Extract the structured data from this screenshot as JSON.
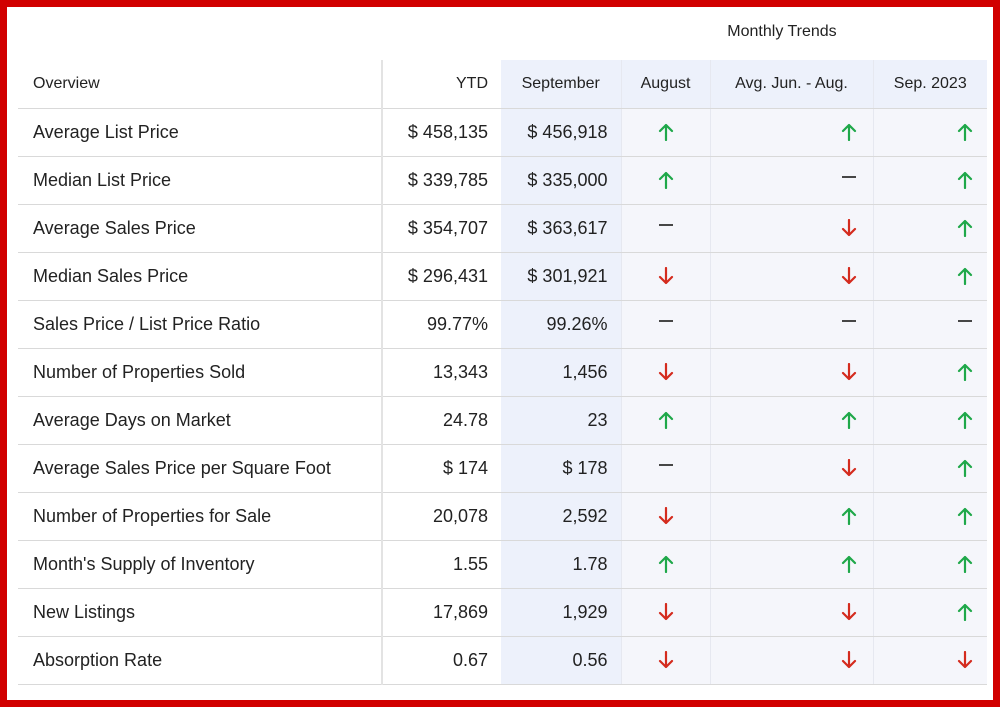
{
  "header": {
    "section_title": "Monthly Trends",
    "columns": {
      "overview": "Overview",
      "ytd": "YTD",
      "september": "September",
      "august": "August",
      "avg": "Avg. Jun. - Aug.",
      "sep2023": "Sep. 2023"
    }
  },
  "colors": {
    "border": "#d10000",
    "up": "#1fa84a",
    "down": "#d42b1e",
    "flat": "#333333",
    "highlight": "#edf1fb"
  },
  "rows": [
    {
      "label": "Average List Price",
      "ytd": "$ 458,135",
      "september": "$ 456,918",
      "august": "up",
      "avg": "up",
      "sep2023": "up"
    },
    {
      "label": "Median List Price",
      "ytd": "$ 339,785",
      "september": "$ 335,000",
      "august": "up",
      "avg": "flat",
      "sep2023": "up"
    },
    {
      "label": "Average Sales Price",
      "ytd": "$ 354,707",
      "september": "$ 363,617",
      "august": "flat",
      "avg": "down",
      "sep2023": "up"
    },
    {
      "label": "Median Sales Price",
      "ytd": "$ 296,431",
      "september": "$ 301,921",
      "august": "down",
      "avg": "down",
      "sep2023": "up"
    },
    {
      "label": "Sales Price / List Price Ratio",
      "ytd": "99.77%",
      "september": "99.26%",
      "august": "flat",
      "avg": "flat",
      "sep2023": "flat"
    },
    {
      "label": "Number of Properties Sold",
      "ytd": "13,343",
      "september": "1,456",
      "august": "down",
      "avg": "down",
      "sep2023": "up"
    },
    {
      "label": "Average Days on Market",
      "ytd": "24.78",
      "september": "23",
      "august": "up",
      "avg": "up",
      "sep2023": "up"
    },
    {
      "label": "Average Sales Price per Square Foot",
      "ytd": "$ 174",
      "september": "$ 178",
      "august": "flat",
      "avg": "down",
      "sep2023": "up"
    },
    {
      "label": "Number of Properties for Sale",
      "ytd": "20,078",
      "september": "2,592",
      "august": "down",
      "avg": "up",
      "sep2023": "up"
    },
    {
      "label": "Month's Supply of Inventory",
      "ytd": "1.55",
      "september": "1.78",
      "august": "up",
      "avg": "up",
      "sep2023": "up"
    },
    {
      "label": "New Listings",
      "ytd": "17,869",
      "september": "1,929",
      "august": "down",
      "avg": "down",
      "sep2023": "up"
    },
    {
      "label": "Absorption Rate",
      "ytd": "0.67",
      "september": "0.56",
      "august": "down",
      "avg": "down",
      "sep2023": "down"
    }
  ]
}
